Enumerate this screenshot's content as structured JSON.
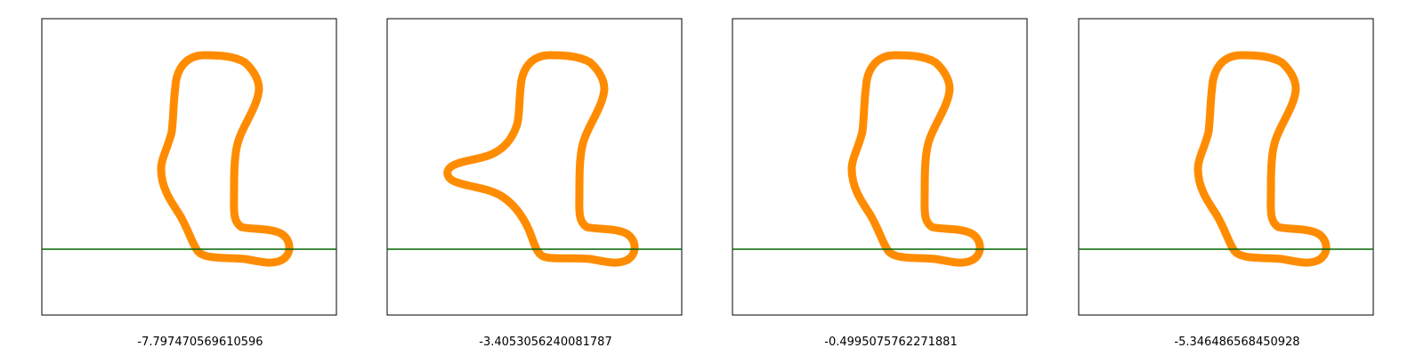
{
  "colors": {
    "shape": "#ff8c00",
    "baseline": "#006400",
    "frame": "#000000",
    "background": "#ffffff"
  },
  "panels": [
    {
      "caption": "-7.797470569610596",
      "variant": "standard"
    },
    {
      "caption": "-3.4053056240081787",
      "variant": "wide-bulge"
    },
    {
      "caption": "-0.4995075762271881",
      "variant": "standard"
    },
    {
      "caption": "-5.346486568450928",
      "variant": "standard"
    }
  ]
}
